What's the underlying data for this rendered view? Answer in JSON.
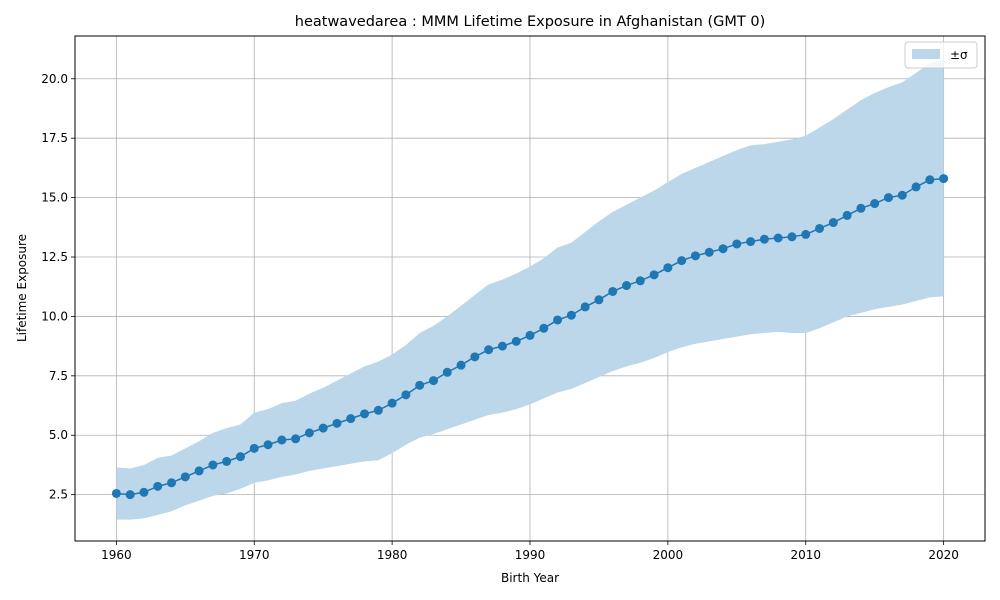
{
  "chart_data": {
    "type": "line",
    "title": "heatwavedarea : MMM Lifetime Exposure in Afghanistan (GMT 0)",
    "xlabel": "Birth Year",
    "ylabel": "Lifetime Exposure",
    "xlim": [
      1957,
      2023
    ],
    "ylim": [
      0.55,
      21.8
    ],
    "xticks": [
      1960,
      1970,
      1980,
      1990,
      2000,
      2010,
      2020
    ],
    "xtick_labels": [
      "1960",
      "1970",
      "1980",
      "1990",
      "2000",
      "2010",
      "2020"
    ],
    "yticks": [
      2.5,
      5.0,
      7.5,
      10.0,
      12.5,
      15.0,
      17.5,
      20.0
    ],
    "ytick_labels": [
      "2.5",
      "5.0",
      "7.5",
      "10.0",
      "12.5",
      "15.0",
      "17.5",
      "20.0"
    ],
    "grid": true,
    "legend": {
      "position": "top-right",
      "entries": [
        "±σ"
      ]
    },
    "colors": {
      "line": "#1f77b4",
      "band": "#bcd6ea",
      "grid": "#b0b0b0"
    },
    "x": [
      1960,
      1961,
      1962,
      1963,
      1964,
      1965,
      1966,
      1967,
      1968,
      1969,
      1970,
      1971,
      1972,
      1973,
      1974,
      1975,
      1976,
      1977,
      1978,
      1979,
      1980,
      1981,
      1982,
      1983,
      1984,
      1985,
      1986,
      1987,
      1988,
      1989,
      1990,
      1991,
      1992,
      1993,
      1994,
      1995,
      1996,
      1997,
      1998,
      1999,
      2000,
      2001,
      2002,
      2003,
      2004,
      2005,
      2006,
      2007,
      2008,
      2009,
      2010,
      2011,
      2012,
      2013,
      2014,
      2015,
      2016,
      2017,
      2018,
      2019,
      2020
    ],
    "series": [
      {
        "values": [
          2.55,
          2.5,
          2.6,
          2.85,
          3.0,
          3.25,
          3.5,
          3.75,
          3.9,
          4.1,
          4.45,
          4.6,
          4.8,
          4.85,
          5.1,
          5.3,
          5.5,
          5.7,
          5.9,
          6.05,
          6.35,
          6.7,
          7.1,
          7.3,
          7.65,
          7.95,
          8.3,
          8.6,
          8.75,
          8.95,
          9.2,
          9.5,
          9.85,
          10.05,
          10.4,
          10.7,
          11.05,
          11.3,
          11.5,
          11.75,
          12.05,
          12.35,
          12.55,
          12.7,
          12.85,
          13.05,
          13.15,
          13.25,
          13.3,
          13.35,
          13.45,
          13.7,
          13.95,
          14.25,
          14.55,
          14.75,
          15.0,
          15.1,
          15.45,
          15.75,
          15.8
        ]
      }
    ],
    "band": {
      "name": "±σ",
      "upper": [
        3.65,
        3.6,
        3.75,
        4.05,
        4.15,
        4.45,
        4.75,
        5.1,
        5.3,
        5.45,
        5.95,
        6.1,
        6.35,
        6.45,
        6.75,
        7.0,
        7.3,
        7.6,
        7.9,
        8.1,
        8.4,
        8.8,
        9.3,
        9.6,
        10.0,
        10.45,
        10.9,
        11.35,
        11.55,
        11.8,
        12.1,
        12.45,
        12.9,
        13.1,
        13.55,
        14.0,
        14.4,
        14.7,
        15.0,
        15.3,
        15.65,
        16.0,
        16.25,
        16.5,
        16.75,
        17.0,
        17.2,
        17.25,
        17.35,
        17.45,
        17.6,
        17.95,
        18.3,
        18.7,
        19.1,
        19.4,
        19.65,
        19.85,
        20.25,
        20.65,
        20.8
      ],
      "lower": [
        1.45,
        1.45,
        1.5,
        1.65,
        1.8,
        2.05,
        2.25,
        2.45,
        2.55,
        2.75,
        3.0,
        3.1,
        3.25,
        3.35,
        3.5,
        3.6,
        3.7,
        3.8,
        3.9,
        3.95,
        4.25,
        4.6,
        4.9,
        5.05,
        5.25,
        5.45,
        5.65,
        5.85,
        5.95,
        6.1,
        6.3,
        6.55,
        6.8,
        6.95,
        7.2,
        7.45,
        7.7,
        7.9,
        8.05,
        8.25,
        8.5,
        8.7,
        8.85,
        8.95,
        9.05,
        9.15,
        9.25,
        9.3,
        9.35,
        9.3,
        9.3,
        9.5,
        9.75,
        10.0,
        10.15,
        10.3,
        10.4,
        10.5,
        10.65,
        10.8,
        10.85
      ]
    }
  }
}
